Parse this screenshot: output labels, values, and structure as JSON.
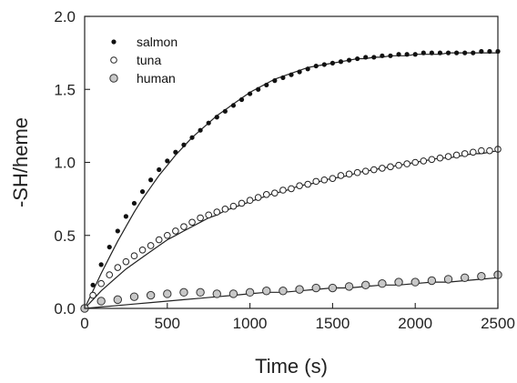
{
  "chart_data": {
    "type": "scatter",
    "title": "",
    "xlabel": "Time (s)",
    "ylabel": "-SH/heme",
    "xlim": [
      0,
      2500
    ],
    "ylim": [
      0,
      2.0
    ],
    "xticks": [
      0,
      500,
      1000,
      1500,
      2000,
      2500
    ],
    "xtick_labels": [
      "0",
      "500",
      "1000",
      "1500",
      "2000",
      "2500"
    ],
    "yticks": [
      0.0,
      0.5,
      1.0,
      1.5,
      2.0
    ],
    "ytick_labels": [
      "0.0",
      "0.5",
      "1.0",
      "1.5",
      "2.0"
    ],
    "grid": false,
    "legend_position": "top-left",
    "series": [
      {
        "name": "salmon",
        "marker": "filled-small",
        "color": "#111111",
        "x": [
          0,
          50,
          100,
          150,
          200,
          250,
          300,
          350,
          400,
          450,
          500,
          550,
          600,
          650,
          700,
          750,
          800,
          850,
          900,
          950,
          1000,
          1050,
          1100,
          1150,
          1200,
          1250,
          1300,
          1350,
          1400,
          1450,
          1500,
          1550,
          1600,
          1650,
          1700,
          1750,
          1800,
          1850,
          1900,
          1950,
          2000,
          2050,
          2100,
          2150,
          2200,
          2250,
          2300,
          2350,
          2400,
          2450,
          2500
        ],
        "y": [
          0.0,
          0.16,
          0.3,
          0.42,
          0.53,
          0.63,
          0.72,
          0.8,
          0.88,
          0.95,
          1.01,
          1.07,
          1.12,
          1.17,
          1.22,
          1.27,
          1.31,
          1.35,
          1.39,
          1.43,
          1.47,
          1.5,
          1.53,
          1.56,
          1.58,
          1.6,
          1.62,
          1.64,
          1.66,
          1.67,
          1.68,
          1.69,
          1.7,
          1.71,
          1.72,
          1.72,
          1.73,
          1.73,
          1.74,
          1.74,
          1.74,
          1.75,
          1.75,
          1.75,
          1.75,
          1.75,
          1.75,
          1.75,
          1.76,
          1.76,
          1.76
        ],
        "fit_y": [
          0.0,
          0.12,
          0.24,
          0.35,
          0.46,
          0.56,
          0.66,
          0.75,
          0.83,
          0.91,
          0.98,
          1.05,
          1.11,
          1.17,
          1.22,
          1.27,
          1.32,
          1.36,
          1.4,
          1.44,
          1.48,
          1.51,
          1.54,
          1.57,
          1.59,
          1.61,
          1.63,
          1.65,
          1.66,
          1.67,
          1.68,
          1.69,
          1.7,
          1.71,
          1.71,
          1.72,
          1.72,
          1.73,
          1.73,
          1.73,
          1.74,
          1.74,
          1.74,
          1.74,
          1.75,
          1.75,
          1.75,
          1.75,
          1.75,
          1.75,
          1.75
        ]
      },
      {
        "name": "tuna",
        "marker": "open-circle",
        "color": "#ffffff",
        "x": [
          0,
          50,
          100,
          150,
          200,
          250,
          300,
          350,
          400,
          450,
          500,
          550,
          600,
          650,
          700,
          750,
          800,
          850,
          900,
          950,
          1000,
          1050,
          1100,
          1150,
          1200,
          1250,
          1300,
          1350,
          1400,
          1450,
          1500,
          1550,
          1600,
          1650,
          1700,
          1750,
          1800,
          1850,
          1900,
          1950,
          2000,
          2050,
          2100,
          2150,
          2200,
          2250,
          2300,
          2350,
          2400,
          2450,
          2500
        ],
        "y": [
          0.0,
          0.09,
          0.17,
          0.23,
          0.28,
          0.32,
          0.36,
          0.4,
          0.43,
          0.47,
          0.5,
          0.53,
          0.56,
          0.59,
          0.62,
          0.64,
          0.66,
          0.68,
          0.7,
          0.72,
          0.74,
          0.76,
          0.78,
          0.79,
          0.81,
          0.82,
          0.84,
          0.85,
          0.87,
          0.88,
          0.89,
          0.91,
          0.92,
          0.93,
          0.94,
          0.95,
          0.96,
          0.97,
          0.98,
          0.99,
          1.0,
          1.01,
          1.02,
          1.03,
          1.04,
          1.05,
          1.06,
          1.07,
          1.08,
          1.08,
          1.09
        ],
        "fit_y": [
          0.0,
          0.06,
          0.12,
          0.17,
          0.22,
          0.27,
          0.31,
          0.35,
          0.39,
          0.43,
          0.47,
          0.5,
          0.53,
          0.56,
          0.59,
          0.62,
          0.64,
          0.67,
          0.69,
          0.71,
          0.73,
          0.75,
          0.77,
          0.79,
          0.8,
          0.82,
          0.84,
          0.85,
          0.86,
          0.88,
          0.89,
          0.9,
          0.91,
          0.93,
          0.94,
          0.95,
          0.96,
          0.97,
          0.98,
          0.99,
          1.0,
          1.01,
          1.02,
          1.03,
          1.03,
          1.04,
          1.05,
          1.06,
          1.06,
          1.07,
          1.08
        ]
      },
      {
        "name": "human",
        "marker": "gray-circle",
        "color": "#c8c8c8",
        "x": [
          0,
          100,
          200,
          300,
          400,
          500,
          600,
          700,
          800,
          900,
          1000,
          1100,
          1200,
          1300,
          1400,
          1500,
          1600,
          1700,
          1800,
          1900,
          2000,
          2100,
          2200,
          2300,
          2400,
          2500
        ],
        "y": [
          0.0,
          0.05,
          0.06,
          0.08,
          0.09,
          0.1,
          0.11,
          0.11,
          0.1,
          0.1,
          0.11,
          0.12,
          0.12,
          0.13,
          0.14,
          0.14,
          0.15,
          0.16,
          0.17,
          0.18,
          0.18,
          0.19,
          0.2,
          0.21,
          0.22,
          0.23
        ],
        "fit_y": [
          0.0,
          0.01,
          0.02,
          0.03,
          0.04,
          0.05,
          0.06,
          0.07,
          0.08,
          0.09,
          0.1,
          0.11,
          0.11,
          0.12,
          0.13,
          0.14,
          0.14,
          0.15,
          0.16,
          0.16,
          0.17,
          0.18,
          0.18,
          0.19,
          0.2,
          0.21
        ]
      }
    ]
  }
}
